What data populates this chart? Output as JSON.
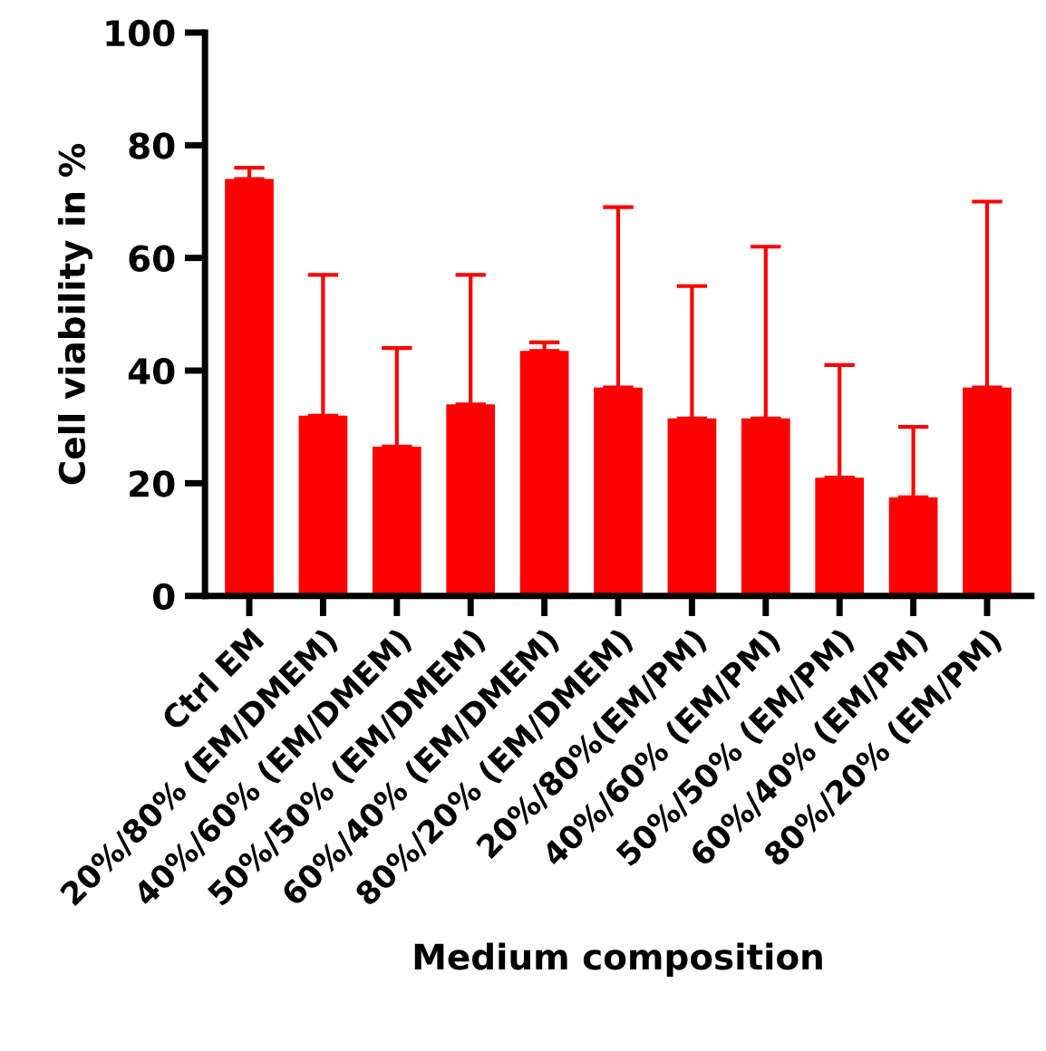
{
  "chart_data": {
    "type": "bar",
    "xlabel": "Medium composition",
    "ylabel": "Cell viability in %",
    "categories": [
      "Ctrl EM",
      "20%/80% (EM/DMEM)",
      "40%/60% (EM/DMEM)",
      "50%/50% (EM/DMEM)",
      "60%/40% (EM/DMEM)",
      "80%/20% (EM/DMEM)",
      "20%/80%(EM/PM)",
      "40%/60% (EM/PM)",
      "50%/50% (EM/PM)",
      "60%/40% (EM/PM)",
      "80%/20% (EM/PM)"
    ],
    "values": [
      74,
      32,
      26.5,
      34,
      43.5,
      37,
      31.5,
      31.5,
      21,
      17.5,
      37
    ],
    "errors": [
      [
        74,
        76
      ],
      [
        32,
        57
      ],
      [
        26.5,
        44
      ],
      [
        34,
        57
      ],
      [
        43.5,
        45
      ],
      [
        37,
        69
      ],
      [
        31.5,
        55
      ],
      [
        31.5,
        62
      ],
      [
        21,
        41
      ],
      [
        17.5,
        30
      ],
      [
        37,
        70
      ]
    ],
    "color": "#ff0000",
    "ylim": [
      0,
      100
    ],
    "yticks": [
      0,
      20,
      40,
      60,
      80,
      100
    ],
    "grid": false
  }
}
